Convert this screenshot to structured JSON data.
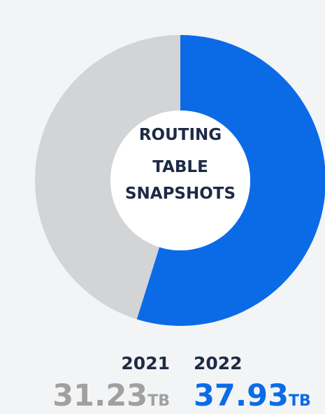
{
  "chart_data": {
    "type": "donut",
    "center_text": [
      "ROUTING",
      "TABLE",
      "SNAPSHOTS"
    ],
    "categories": [
      "2021",
      "2022"
    ],
    "values": [
      31.23,
      37.93
    ],
    "unit": "TB",
    "colors": [
      "#d3d4d6",
      "#0b6be6"
    ],
    "label_colors": [
      "#a0a0a0",
      "#0b6be6"
    ]
  }
}
